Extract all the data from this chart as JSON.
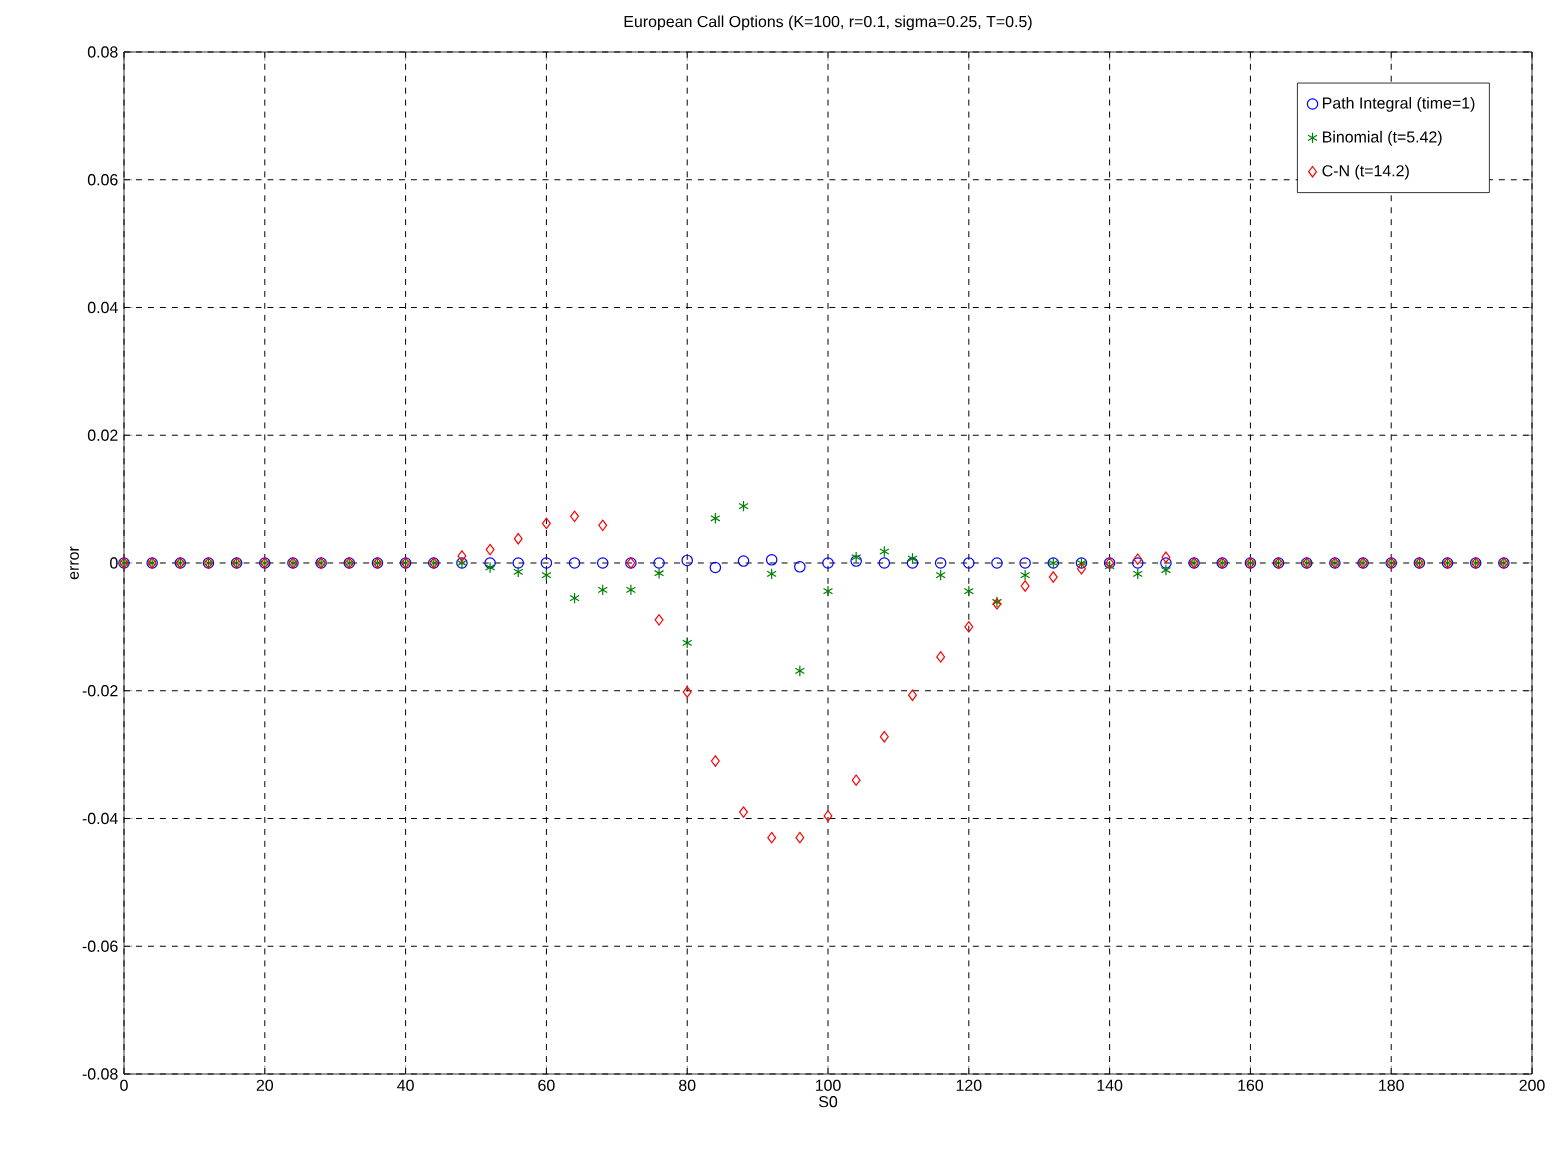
{
  "chart_data": {
    "type": "scatter",
    "title": "European Call Options (K=100, r=0.1, sigma=0.25, T=0.5)",
    "xlabel": "S0",
    "ylabel": "error",
    "x": [
      0,
      4,
      8,
      12,
      16,
      20,
      24,
      28,
      32,
      36,
      40,
      44,
      48,
      52,
      56,
      60,
      64,
      68,
      72,
      76,
      80,
      84,
      88,
      92,
      96,
      100,
      104,
      108,
      112,
      116,
      120,
      124,
      128,
      132,
      136,
      140,
      144,
      148,
      152,
      156,
      160,
      164,
      168,
      172,
      176,
      180,
      184,
      188,
      192,
      196
    ],
    "series": [
      {
        "name": "Path Integral (time=1)",
        "color": "#0000ff",
        "marker": "circle",
        "values": [
          0,
          0,
          0,
          0,
          0,
          0,
          0,
          0,
          0,
          0,
          0,
          0,
          0,
          0,
          0,
          0,
          0,
          0,
          0,
          0,
          0.0004,
          -0.0007,
          0.0003,
          0.0005,
          -0.0006,
          0,
          0.0003,
          0,
          0,
          0,
          0,
          0,
          0,
          0,
          0,
          0,
          0,
          0,
          0,
          0,
          0,
          0,
          0,
          0,
          0,
          0,
          0,
          0,
          0,
          0
        ]
      },
      {
        "name": "Binomial (t=5.42)",
        "color": "#008000",
        "marker": "cross",
        "values": [
          0,
          0,
          0,
          0,
          0,
          0,
          0,
          0,
          0,
          0,
          0,
          0,
          0,
          -0.0007,
          -0.0014,
          -0.0019,
          -0.0055,
          -0.0042,
          -0.0042,
          -0.0016,
          -0.0125,
          0.007,
          0.0089,
          -0.0017,
          -0.0169,
          -0.0044,
          0.0009,
          0.0018,
          0.0007,
          -0.0019,
          -0.0044,
          -0.0061,
          -0.0019,
          0,
          0,
          -0.0005,
          -0.0017,
          -0.0011,
          0,
          0,
          0,
          0,
          0,
          0,
          0,
          0,
          0,
          0,
          0,
          0
        ]
      },
      {
        "name": "C-N (t=14.2)",
        "color": "#ff0000",
        "marker": "diamond",
        "values": [
          0,
          0,
          0,
          0,
          0,
          0,
          0,
          0,
          0,
          0,
          0,
          0,
          0.0011,
          0.0021,
          0.0038,
          0.0062,
          0.0073,
          0.0059,
          0,
          -0.0089,
          -0.0202,
          -0.031,
          -0.039,
          -0.043,
          -0.043,
          -0.0396,
          -0.034,
          -0.0272,
          -0.0207,
          -0.0147,
          -0.01,
          -0.0064,
          -0.0036,
          -0.0022,
          -0.0009,
          0,
          0.0006,
          0.0009,
          0,
          0,
          0,
          0,
          0,
          0,
          0,
          0,
          0,
          0,
          0,
          0
        ]
      }
    ],
    "xlim": [
      0,
      200
    ],
    "xticks": [
      0,
      20,
      40,
      60,
      80,
      100,
      120,
      140,
      160,
      180,
      200
    ],
    "ylim": [
      -0.08,
      0.08
    ],
    "yticks": [
      -0.08,
      -0.06,
      -0.04,
      -0.02,
      0,
      0.02,
      0.04,
      0.06,
      0.08
    ],
    "grid": true,
    "legend": "top right"
  }
}
